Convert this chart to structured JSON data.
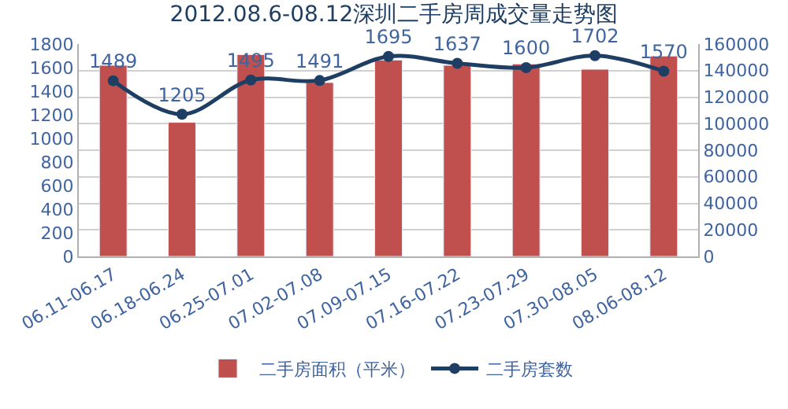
{
  "chart_data": {
    "type": "bar",
    "title": "2012.08.6-08.12深圳二手房周成交量走势图",
    "categories": [
      "06.11-06.17",
      "06.18-06.24",
      "06.25-07.01",
      "07.02-07.08",
      "07.09-07.15",
      "07.16-07.22",
      "07.23-07.29",
      "07.30-08.05",
      "08.06-08.12"
    ],
    "series": [
      {
        "name": "二手房面积（平米）",
        "axis": "y2",
        "color": "#c0504d",
        "values": [
          144000,
          101000,
          152000,
          131000,
          148000,
          144000,
          145000,
          141000,
          151000
        ]
      },
      {
        "name": "二手房套数",
        "type": "line",
        "axis": "y",
        "color": "#1f3e63",
        "marker": "circle",
        "data_labels": true,
        "values": [
          1489,
          1205,
          1495,
          1491,
          1695,
          1637,
          1600,
          1702,
          1570
        ]
      }
    ],
    "ylim": [
      0,
      1800
    ],
    "yticks": [
      0,
      200,
      400,
      600,
      800,
      1000,
      1200,
      1400,
      1600,
      1800
    ],
    "y2lim": [
      0,
      160000
    ],
    "y2ticks": [
      0,
      20000,
      40000,
      60000,
      80000,
      100000,
      120000,
      140000,
      160000
    ],
    "grid": "y2",
    "legend": "bottom"
  }
}
